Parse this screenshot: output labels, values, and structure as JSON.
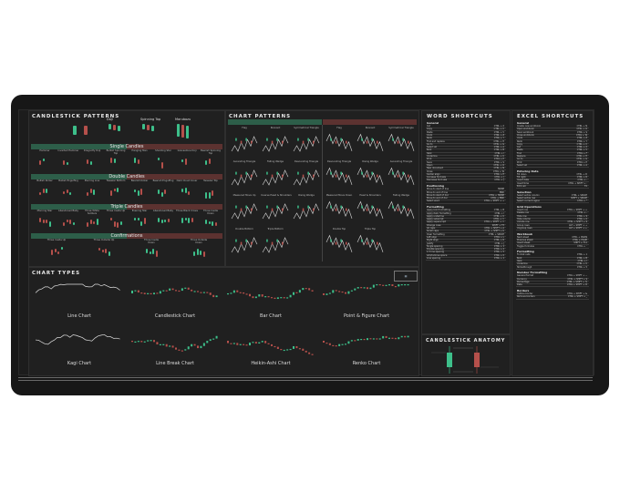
{
  "candlestick_patterns": {
    "title": "CANDLESTICK PATTERNS",
    "top_labels": [
      "Doji",
      "Spinning Top",
      "Marubozu"
    ],
    "sections": [
      {
        "name": "Single Candles",
        "labels": [
          "Hammer",
          "Inverted Hammer",
          "Dragonfly Doji",
          "Bullish Spinning Top",
          "Hanging Man",
          "Shooting Star",
          "Gravestone Doji",
          "Bearish Spinning Top"
        ]
      },
      {
        "name": "Double Candles",
        "labels": [
          "Bullish Kicker",
          "Bullish Engulfing",
          "Piercing Line",
          "Tweezer Bottom",
          "Bearish Kicker",
          "Bearish Engulfing",
          "Dark Cloud Cover",
          "Tweezer Top"
        ]
      },
      {
        "name": "Triple Candles",
        "labels": [
          "Morning Star",
          "Abandoned Baby",
          "Three White Soldiers",
          "Three Inside Up",
          "Evening Star",
          "Abandoned Baby",
          "Three Black Crows",
          "Three Inside Down"
        ]
      },
      {
        "name": "Confirmations",
        "labels": [
          "Three Inside Up",
          "Three Outside Up",
          "Three Inside Down",
          "Three Outside Down"
        ]
      }
    ]
  },
  "chart_patterns": {
    "title": "CHART PATTERNS",
    "left_labels": [
      "Flag",
      "Pennant",
      "Symmetrical Triangle",
      "Ascending Triangle",
      "Falling Wedge",
      "Descending Triangle",
      "Measured Move Up",
      "Inverse Head & Shoulders",
      "Rising Wedge",
      "Double Bottom",
      "Triple Bottom"
    ],
    "right_labels": [
      "Flag",
      "Pennant",
      "Symmetrical Triangle",
      "Descending Triangle",
      "Rising Wedge",
      "Ascending Triangle",
      "Measured Move Down",
      "Head & Shoulders",
      "Falling Wedge",
      "Double Top",
      "Triple Top"
    ]
  },
  "chart_types": {
    "title": "CHART TYPES",
    "items": [
      "Line Chart",
      "Candlestick Chart",
      "Bar Chart",
      "Point & Figure Chart",
      "Kagi Chart",
      "Line Break Chart",
      "Heikin-Ashi Chart",
      "Renko Chart"
    ]
  },
  "word_shortcuts": {
    "title": "WORD SHORTCUTS",
    "sections": [
      {
        "name": "General",
        "rows": [
          [
            "Cut",
            "CTRL + X"
          ],
          [
            "Copy",
            "CTRL + C"
          ],
          [
            "Paste",
            "CTRL + V"
          ],
          [
            "Undo",
            "CTRL + Z"
          ],
          [
            "Redo",
            "CTRL + Y"
          ],
          [
            "Find and replace",
            "CTRL + H"
          ],
          [
            "Go to",
            "CTRL + G"
          ],
          [
            "Select all",
            "CTRL + A"
          ],
          [
            "Bold",
            "CTRL + B"
          ],
          [
            "Italic",
            "CTRL + I"
          ],
          [
            "Underline",
            "CTRL + U"
          ],
          [
            "Print",
            "CTRL + P"
          ],
          [
            "Save",
            "CTRL + S"
          ],
          [
            "Open",
            "CTRL + O"
          ],
          [
            "New document",
            "CTRL + N"
          ],
          [
            "Close",
            "CTRL + W"
          ],
          [
            "Center align",
            "CTRL + E"
          ],
          [
            "Increase font size",
            "CTRL + ]"
          ],
          [
            "Decrease font size",
            "CTRL + ["
          ]
        ]
      },
      {
        "name": "Positioning",
        "rows": [
          [
            "Move to start of line",
            "HOME"
          ],
          [
            "Move to end of line",
            "END"
          ],
          [
            "Move to start of doc",
            "CTRL + HOME"
          ],
          [
            "Move to end of doc",
            "CTRL + END"
          ],
          [
            "Select word",
            "CTRL + SHIFT + →"
          ]
        ]
      },
      {
        "name": "Formatting",
        "rows": [
          [
            "Apply bold formatting",
            "CTRL + B"
          ],
          [
            "Apply italic formatting",
            "CTRL + I"
          ],
          [
            "Apply underline",
            "CTRL + U"
          ],
          [
            "Apply subscript",
            "CTRL + ="
          ],
          [
            "Apply superscript",
            "CTRL + SHIFT + ="
          ],
          [
            "Change case",
            "SHIFT + F3"
          ],
          [
            "All caps",
            "CTRL + SHIFT + A"
          ],
          [
            "Small caps",
            "CTRL + SHIFT + K"
          ],
          [
            "Clear formatting",
            "CTRL + SPACE"
          ],
          [
            "Left align",
            "CTRL + L"
          ],
          [
            "Right align",
            "CTRL + R"
          ],
          [
            "Justify",
            "CTRL + J"
          ],
          [
            "Single spacing",
            "CTRL + 1"
          ],
          [
            "Double spacing",
            "CTRL + 2"
          ],
          [
            "1.5 line spacing",
            "CTRL + 5"
          ],
          [
            "Add/remove space",
            "CTRL + 0"
          ],
          [
            "Line spacing",
            "CTRL + 1"
          ]
        ]
      }
    ]
  },
  "excel_shortcuts": {
    "title": "EXCEL SHORTCUTS",
    "sections": [
      {
        "name": "General",
        "rows": [
          [
            "Create new workbook",
            "CTRL + N"
          ],
          [
            "Open workbook",
            "CTRL + O"
          ],
          [
            "Save workbook",
            "CTRL + S"
          ],
          [
            "Close workbook",
            "CTRL + W"
          ],
          [
            "Undo",
            "CTRL + Z"
          ],
          [
            "Redo",
            "CTRL + Y"
          ],
          [
            "Copy",
            "CTRL + C"
          ],
          [
            "Cut",
            "CTRL + X"
          ],
          [
            "Paste",
            "CTRL + V"
          ],
          [
            "Find",
            "CTRL + F"
          ],
          [
            "Replace",
            "CTRL + H"
          ],
          [
            "Go to",
            "CTRL + G"
          ],
          [
            "Print",
            "CTRL + P"
          ],
          [
            "Select all",
            "CTRL + A"
          ]
        ]
      },
      {
        "name": "Entering Data",
        "rows": [
          [
            "Fill down",
            "CTRL + D"
          ],
          [
            "Fill right",
            "CTRL + R"
          ],
          [
            "Insert date",
            "CTRL + ;"
          ],
          [
            "Insert time",
            "CTRL + SHIFT + :"
          ],
          [
            "Edit cell",
            "F2"
          ]
        ]
      },
      {
        "name": "Selection",
        "rows": [
          [
            "Select entire column",
            "CTRL + SPACE"
          ],
          [
            "Select entire row",
            "SHIFT + SPACE"
          ],
          [
            "Select current region",
            "CTRL + *"
          ]
        ]
      },
      {
        "name": "Grid Operations",
        "rows": [
          [
            "Insert row",
            "CTRL + SHIFT + +"
          ],
          [
            "Delete row",
            "CTRL + -"
          ],
          [
            "Hide row",
            "CTRL + 9"
          ],
          [
            "Hide column",
            "CTRL + 0"
          ],
          [
            "Unhide row",
            "CTRL + SHIFT + 9"
          ],
          [
            "Group rows",
            "ALT + SHIFT + →"
          ],
          [
            "Ungroup rows",
            "ALT + SHIFT + ←"
          ]
        ]
      },
      {
        "name": "Workbook",
        "rows": [
          [
            "Next sheet",
            "CTRL + PGDN"
          ],
          [
            "Previous sheet",
            "CTRL + PGUP"
          ],
          [
            "Insert sheet",
            "SHIFT + F11"
          ],
          [
            "Toggle formulas",
            "CTRL + `"
          ]
        ]
      },
      {
        "name": "Formatting",
        "rows": [
          [
            "Format cells",
            "CTRL + 1"
          ],
          [
            "Bold",
            "CTRL + B"
          ],
          [
            "Italic",
            "CTRL + I"
          ],
          [
            "Underline",
            "CTRL + U"
          ],
          [
            "Strikethrough",
            "CTRL + 5"
          ]
        ]
      },
      {
        "name": "Number Formatting",
        "rows": [
          [
            "General format",
            "CTRL + SHIFT + ~"
          ],
          [
            "Currency",
            "CTRL + SHIFT + $"
          ],
          [
            "Percentage",
            "CTRL + SHIFT + %"
          ],
          [
            "Date",
            "CTRL + SHIFT + #"
          ]
        ]
      },
      {
        "name": "Borders",
        "rows": [
          [
            "Outline border",
            "CTRL + SHIFT + &"
          ],
          [
            "Remove borders",
            "CTRL + SHIFT + _"
          ]
        ]
      }
    ]
  },
  "candlestick_anatomy": {
    "title": "CANDLESTICK ANATOMY"
  },
  "colors": {
    "bull": "#3dbf8a",
    "bear": "#b5504b",
    "mat": "#171717",
    "band_green": "#2d5e49",
    "band_red": "#5c3230"
  }
}
